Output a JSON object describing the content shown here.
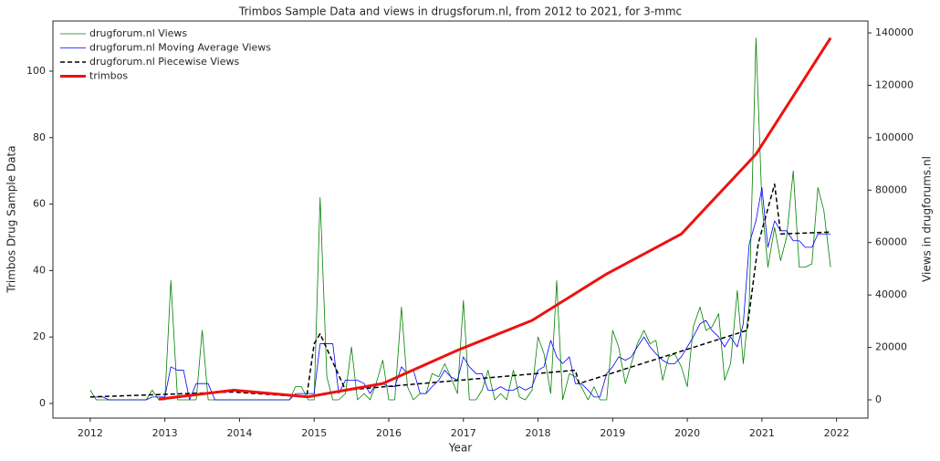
{
  "chart_data": {
    "type": "line",
    "title": "Trimbos Sample Data and views in drugsforum.nl, from 2012 to 2021, for 3-mmc",
    "xlabel": "Year",
    "ylabel": "Trimbos Drug Sample Data",
    "y2label": "Views in drugforums.nl",
    "xlim": [
      2011.5,
      2022.42
    ],
    "xticks": [
      2012,
      2013,
      2014,
      2015,
      2016,
      2017,
      2018,
      2019,
      2020,
      2021,
      2022
    ],
    "ylim": [
      -4.4,
      115.1
    ],
    "yticks": [
      0,
      20,
      40,
      60,
      80,
      100
    ],
    "y2lim": [
      -6966,
      144540
    ],
    "y2ticks": [
      0,
      20000,
      40000,
      60000,
      80000,
      100000,
      120000,
      140000
    ],
    "legend": "upper left",
    "series": [
      {
        "name": "drugforum.nl Views",
        "color": "#008000",
        "linewidth": 0.8,
        "dashed": false,
        "axis": "y2",
        "x": [
          2012.0,
          2012.08,
          2012.17,
          2012.25,
          2012.33,
          2012.42,
          2012.5,
          2012.58,
          2012.67,
          2012.75,
          2012.83,
          2012.92,
          2013.0,
          2013.08,
          2013.17,
          2013.25,
          2013.33,
          2013.42,
          2013.5,
          2013.58,
          2013.67,
          2013.75,
          2013.83,
          2013.92,
          2014.0,
          2014.08,
          2014.17,
          2014.25,
          2014.33,
          2014.42,
          2014.5,
          2014.58,
          2014.67,
          2014.75,
          2014.83,
          2014.92,
          2015.0,
          2015.08,
          2015.17,
          2015.25,
          2015.33,
          2015.42,
          2015.5,
          2015.58,
          2015.67,
          2015.75,
          2015.83,
          2015.92,
          2016.0,
          2016.08,
          2016.17,
          2016.25,
          2016.33,
          2016.42,
          2016.5,
          2016.58,
          2016.67,
          2016.75,
          2016.83,
          2016.92,
          2017.0,
          2017.08,
          2017.17,
          2017.25,
          2017.33,
          2017.42,
          2017.5,
          2017.58,
          2017.67,
          2017.75,
          2017.83,
          2017.92,
          2018.0,
          2018.08,
          2018.17,
          2018.25,
          2018.33,
          2018.42,
          2018.5,
          2018.58,
          2018.67,
          2018.75,
          2018.83,
          2018.92,
          2019.0,
          2019.08,
          2019.17,
          2019.25,
          2019.33,
          2019.42,
          2019.5,
          2019.58,
          2019.67,
          2019.75,
          2019.83,
          2019.92,
          2020.0,
          2020.08,
          2020.17,
          2020.25,
          2020.33,
          2020.42,
          2020.5,
          2020.58,
          2020.67,
          2020.75,
          2020.83,
          2020.92,
          2021.0,
          2021.08,
          2021.17,
          2021.25,
          2021.33,
          2021.42,
          2021.5,
          2021.58,
          2021.67,
          2021.75,
          2021.83,
          2021.92
        ],
        "values": [
          3700,
          0,
          0,
          0,
          0,
          0,
          0,
          0,
          0,
          0,
          3700,
          0,
          0,
          45500,
          0,
          0,
          0,
          0,
          26500,
          0,
          0,
          0,
          0,
          0,
          0,
          0,
          0,
          0,
          0,
          0,
          0,
          0,
          0,
          5000,
          5000,
          0,
          0,
          77200,
          8800,
          0,
          0,
          2400,
          20200,
          0,
          2400,
          0,
          6200,
          15100,
          0,
          0,
          35400,
          5000,
          0,
          2400,
          2400,
          10000,
          8800,
          13800,
          8800,
          2400,
          37900,
          0,
          0,
          3700,
          11300,
          0,
          2400,
          0,
          11300,
          1100,
          0,
          3700,
          24000,
          17600,
          2400,
          45500,
          0,
          10000,
          8800,
          5000,
          0,
          5000,
          0,
          0,
          26500,
          20200,
          6200,
          13800,
          21400,
          26500,
          21400,
          22700,
          7500,
          16400,
          17600,
          12600,
          5000,
          27800,
          35400,
          26500,
          27800,
          32900,
          7500,
          13800,
          41700,
          13800,
          36600,
          138000,
          74700,
          50600,
          65800,
          53100,
          62000,
          87400,
          50600,
          50600,
          51900,
          81000,
          72200,
          50600
        ]
      },
      {
        "name": "drugforum.nl Moving Average Views",
        "color": "#0000ff",
        "linewidth": 0.8,
        "dashed": false,
        "axis": "y2",
        "x": [
          2012.0,
          2012.08,
          2012.17,
          2012.25,
          2012.33,
          2012.42,
          2012.5,
          2012.58,
          2012.67,
          2012.75,
          2012.83,
          2012.92,
          2013.0,
          2013.08,
          2013.17,
          2013.25,
          2013.33,
          2013.42,
          2013.5,
          2013.58,
          2013.67,
          2013.75,
          2013.83,
          2013.92,
          2014.0,
          2014.08,
          2014.17,
          2014.25,
          2014.33,
          2014.42,
          2014.5,
          2014.58,
          2014.67,
          2014.75,
          2014.83,
          2014.92,
          2015.0,
          2015.08,
          2015.17,
          2015.25,
          2015.33,
          2015.42,
          2015.5,
          2015.58,
          2015.67,
          2015.75,
          2015.83,
          2015.92,
          2016.0,
          2016.08,
          2016.17,
          2016.25,
          2016.33,
          2016.42,
          2016.5,
          2016.58,
          2016.67,
          2016.75,
          2016.83,
          2016.92,
          2017.0,
          2017.08,
          2017.17,
          2017.25,
          2017.33,
          2017.42,
          2017.5,
          2017.58,
          2017.67,
          2017.75,
          2017.83,
          2017.92,
          2018.0,
          2018.08,
          2018.17,
          2018.25,
          2018.33,
          2018.42,
          2018.5,
          2018.58,
          2018.67,
          2018.75,
          2018.83,
          2018.92,
          2019.0,
          2019.08,
          2019.17,
          2019.25,
          2019.33,
          2019.42,
          2019.5,
          2019.58,
          2019.67,
          2019.75,
          2019.83,
          2019.92,
          2020.0,
          2020.08,
          2020.17,
          2020.25,
          2020.33,
          2020.42,
          2020.5,
          2020.58,
          2020.67,
          2020.75,
          2020.83,
          2020.92,
          2021.0,
          2021.08,
          2021.17,
          2021.25,
          2021.33,
          2021.42,
          2021.5,
          2021.58,
          2021.67,
          2021.75,
          2021.83,
          2021.92
        ],
        "values": [
          1100,
          1100,
          1100,
          0,
          0,
          0,
          0,
          0,
          0,
          0,
          1100,
          1100,
          1100,
          12600,
          11300,
          11300,
          0,
          6200,
          6200,
          6200,
          0,
          0,
          0,
          0,
          0,
          0,
          0,
          0,
          0,
          0,
          0,
          0,
          0,
          2400,
          2400,
          2400,
          2400,
          21400,
          21400,
          21400,
          2400,
          7500,
          7500,
          7500,
          6200,
          2400,
          6200,
          6200,
          5000,
          5000,
          12600,
          10000,
          11300,
          2400,
          2400,
          5000,
          7500,
          11300,
          8800,
          7500,
          16400,
          12600,
          10000,
          10000,
          3700,
          3700,
          5000,
          3700,
          3700,
          5000,
          3700,
          5000,
          11300,
          12600,
          22700,
          16400,
          13800,
          16400,
          6200,
          6200,
          3700,
          1100,
          1100,
          10000,
          12600,
          16400,
          15100,
          16400,
          20200,
          24000,
          20200,
          17600,
          15100,
          13800,
          13800,
          16400,
          20200,
          24000,
          29000,
          30300,
          26500,
          24000,
          20200,
          24000,
          20200,
          29000,
          59500,
          68300,
          81000,
          58200,
          68300,
          64500,
          64500,
          60700,
          60700,
          58200,
          58200,
          63300,
          63300,
          63300
        ]
      },
      {
        "name": "drugforum.nl Piecewise Views",
        "color": "#000000",
        "linewidth": 1.5,
        "dashed": true,
        "axis": "y2",
        "x": [
          2012.0,
          2013.9,
          2014.9,
          2015.0,
          2015.08,
          2015.42,
          2018.5,
          2018.55,
          2020.8,
          2020.95,
          2021.17,
          2021.25,
          2021.92
        ],
        "values": [
          1100,
          3000,
          1100,
          21400,
          25200,
          3700,
          11300,
          6200,
          26500,
          59500,
          82300,
          63300,
          64000
        ]
      },
      {
        "name": "trimbos",
        "color": "#ee1111",
        "linewidth": 3,
        "dashed": false,
        "axis": "y",
        "x": [
          2012.92,
          2013.92,
          2014.92,
          2015.92,
          2016.92,
          2017.92,
          2018.92,
          2019.92,
          2020.92,
          2021.92
        ],
        "values": [
          1.3,
          4,
          2,
          6,
          16,
          25,
          39,
          51,
          75,
          110
        ]
      }
    ]
  }
}
